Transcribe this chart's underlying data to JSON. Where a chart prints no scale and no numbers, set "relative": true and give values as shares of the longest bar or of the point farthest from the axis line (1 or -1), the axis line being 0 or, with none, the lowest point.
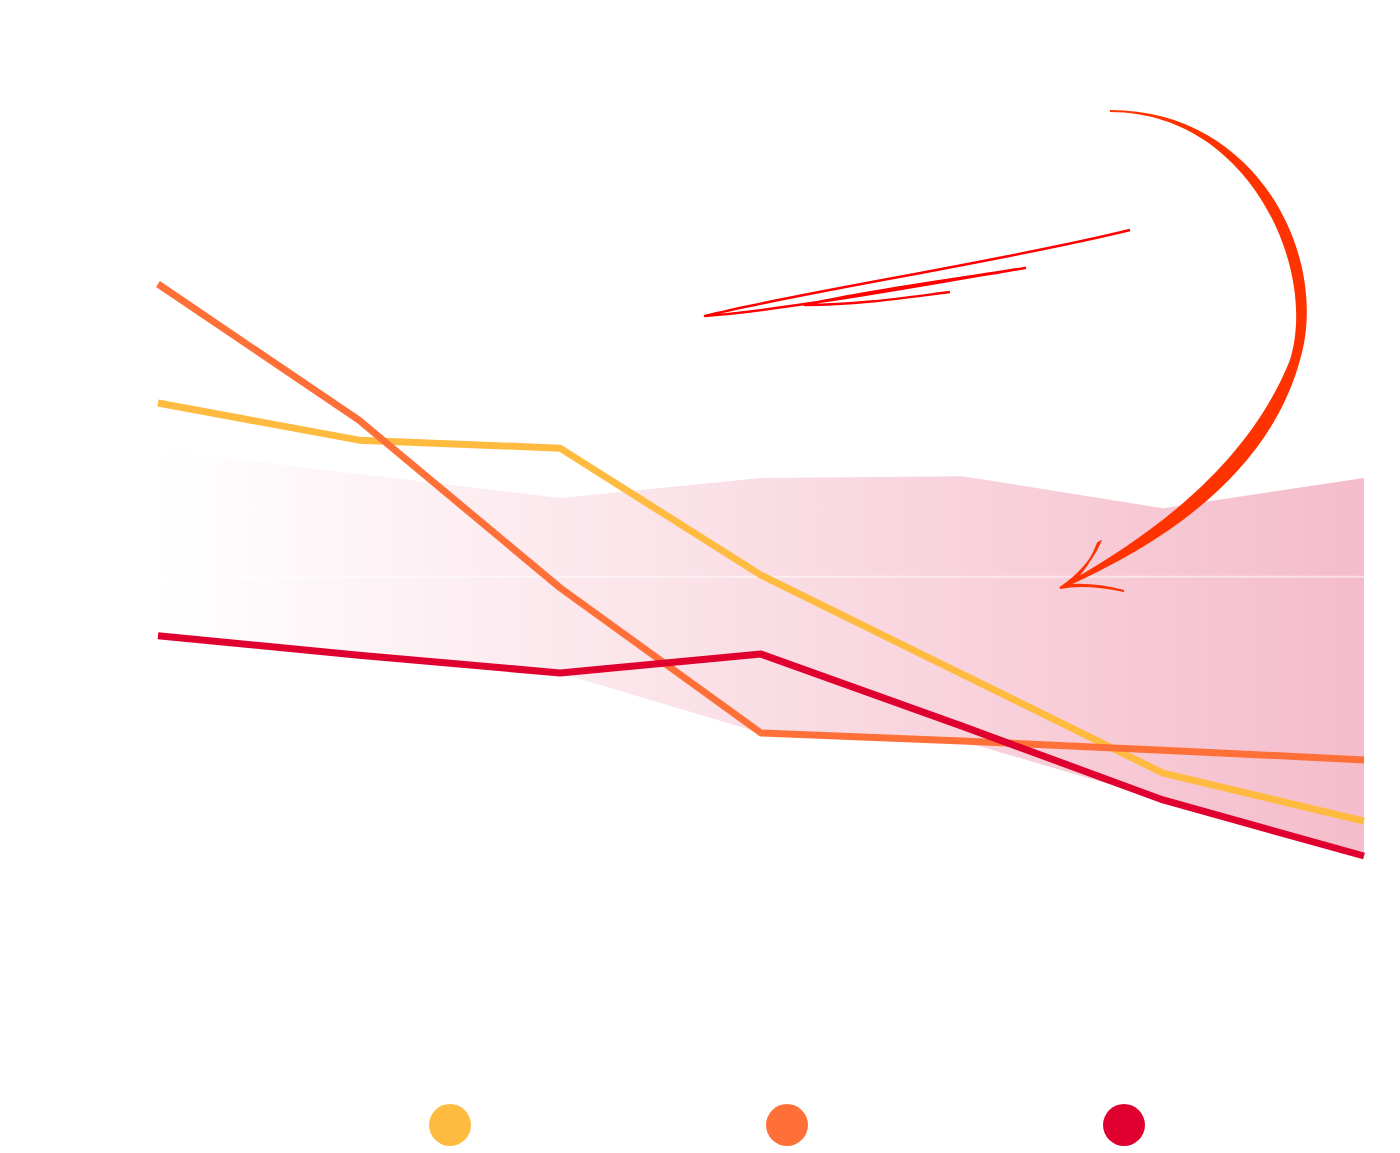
{
  "chart_data": {
    "type": "line",
    "relative": true,
    "categories": [
      null,
      null,
      null,
      null,
      null,
      null,
      null
    ],
    "series": [
      {
        "type": "area",
        "color": "#f5bccb",
        "values": [
          0.71,
          0.668,
          0.626,
          0.661,
          0.664,
          0.608,
          0.661
        ]
      },
      {
        "color": "#ffbb40",
        "values": [
          0.792,
          0.727,
          0.713,
          0.491,
          0.318,
          0.145,
          0.061
        ]
      },
      {
        "color": "#ff7039",
        "values": [
          1,
          0.762,
          0.469,
          0.215,
          0.201,
          0.185,
          0.168
        ]
      },
      {
        "color": "#e0002f",
        "values": [
          0.385,
          0.351,
          0.32,
          0.353,
          0.227,
          0.098,
          0
        ]
      }
    ],
    "ref_lines": [
      {
        "axis": "y",
        "value": 0.488,
        "color": "#ffffff"
      }
    ],
    "line_style": "solid",
    "marker": "none"
  }
}
